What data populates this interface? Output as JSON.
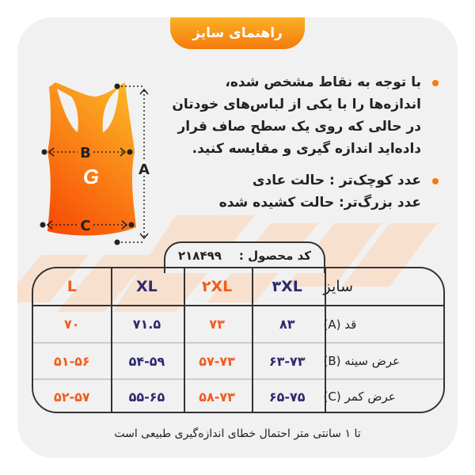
{
  "title": "راهنمای سایز",
  "tank_labels": {
    "a": "A",
    "b": "B",
    "c": "C"
  },
  "instructions": [
    "با توجه به نقاط مشخص شده، اندازه‌ها را با یکی از لباس‌های خودتان در حالی که روی یک سطح صاف قرار داده‌اید اندازه گیری و مقایسه کنید.",
    "عدد کوچک‌تر : حالت عادی",
    "عدد بزرگ‌تر: حالت کشیده شده"
  ],
  "product_code": {
    "label": "کد محصول :",
    "value": "۲۱۸۴۹۹"
  },
  "table": {
    "header": {
      "label": "سایز",
      "sizes": [
        "۳XL",
        "۲XL",
        "XL",
        "L"
      ]
    },
    "rows": [
      {
        "label": "قد (A)",
        "values": [
          "۸۳",
          "۷۳",
          "۷۱.۵",
          "۷۰"
        ]
      },
      {
        "label": "عرض سینه (B)",
        "values": [
          "۶۳-۷۳",
          "۵۷-۷۳",
          "۵۴-۵۹",
          "۵۱-۵۶"
        ]
      },
      {
        "label": "عرض کمر (C)",
        "values": [
          "۶۵-۷۵",
          "۵۸-۷۳",
          "۵۵-۶۵",
          "۵۲-۵۷"
        ]
      }
    ]
  },
  "footer": "تا ۱ سانتی متر احتمال خطای اندازه‌گیری طبیعی است",
  "colors": {
    "navy": "#2e2a6e",
    "orange": "#f25c1a",
    "stripe": "#f8e0cf",
    "card": "#f1f1f1"
  }
}
